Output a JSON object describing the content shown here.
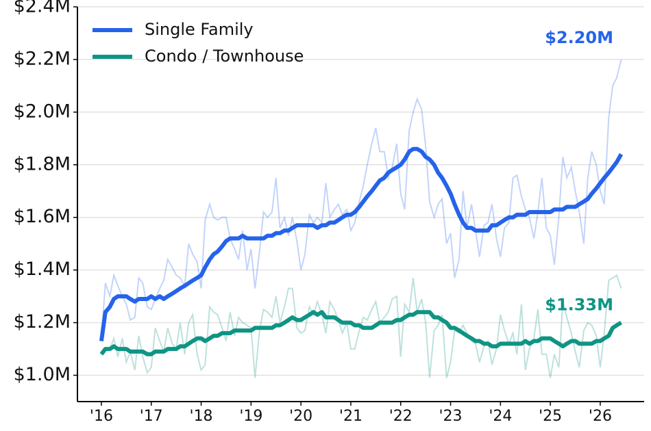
{
  "chart_data": {
    "type": "line",
    "x": [
      2016,
      2016.08,
      2016.17,
      2016.25,
      2016.33,
      2016.42,
      2016.5,
      2016.58,
      2016.67,
      2016.75,
      2016.83,
      2016.92,
      2017,
      2017.08,
      2017.17,
      2017.25,
      2017.33,
      2017.42,
      2017.5,
      2017.58,
      2017.67,
      2017.75,
      2017.83,
      2017.92,
      2018,
      2018.08,
      2018.17,
      2018.25,
      2018.33,
      2018.42,
      2018.5,
      2018.58,
      2018.67,
      2018.75,
      2018.83,
      2018.92,
      2019,
      2019.08,
      2019.17,
      2019.25,
      2019.33,
      2019.42,
      2019.5,
      2019.58,
      2019.67,
      2019.75,
      2019.83,
      2019.92,
      2020,
      2020.08,
      2020.17,
      2020.25,
      2020.33,
      2020.42,
      2020.5,
      2020.58,
      2020.67,
      2020.75,
      2020.83,
      2020.92,
      2021,
      2021.08,
      2021.17,
      2021.25,
      2021.33,
      2021.42,
      2021.5,
      2021.58,
      2021.67,
      2021.75,
      2021.83,
      2021.92,
      2022,
      2022.08,
      2022.17,
      2022.25,
      2022.33,
      2022.42,
      2022.5,
      2022.58,
      2022.67,
      2022.75,
      2022.83,
      2022.92,
      2023,
      2023.08,
      2023.17,
      2023.25,
      2023.33,
      2023.42,
      2023.5,
      2023.58,
      2023.67,
      2023.75,
      2023.83,
      2023.92,
      2024,
      2024.08,
      2024.17,
      2024.25,
      2024.33,
      2024.42,
      2024.5,
      2024.58,
      2024.67,
      2024.75,
      2024.83,
      2024.92,
      2025,
      2025.08,
      2025.17,
      2025.25,
      2025.33,
      2025.42,
      2025.5,
      2025.58,
      2025.67,
      2025.75,
      2025.83,
      2025.92,
      2026,
      2026.08,
      2026.17,
      2026.25,
      2026.33,
      2026.42
    ],
    "series": [
      {
        "name": "Single Family",
        "color": "#2563eb",
        "end_label": "$2.20M",
        "values": [
          1.13,
          1.24,
          1.26,
          1.29,
          1.3,
          1.3,
          1.3,
          1.29,
          1.28,
          1.29,
          1.29,
          1.29,
          1.3,
          1.29,
          1.3,
          1.29,
          1.3,
          1.31,
          1.32,
          1.33,
          1.34,
          1.35,
          1.36,
          1.37,
          1.38,
          1.41,
          1.44,
          1.46,
          1.47,
          1.49,
          1.51,
          1.52,
          1.52,
          1.52,
          1.53,
          1.52,
          1.52,
          1.52,
          1.52,
          1.52,
          1.53,
          1.53,
          1.54,
          1.54,
          1.55,
          1.55,
          1.56,
          1.57,
          1.57,
          1.57,
          1.57,
          1.57,
          1.56,
          1.57,
          1.57,
          1.58,
          1.58,
          1.59,
          1.6,
          1.61,
          1.61,
          1.62,
          1.64,
          1.66,
          1.68,
          1.7,
          1.72,
          1.74,
          1.75,
          1.77,
          1.78,
          1.79,
          1.8,
          1.82,
          1.85,
          1.86,
          1.86,
          1.85,
          1.83,
          1.82,
          1.8,
          1.77,
          1.75,
          1.72,
          1.69,
          1.65,
          1.61,
          1.58,
          1.56,
          1.56,
          1.55,
          1.55,
          1.55,
          1.55,
          1.57,
          1.57,
          1.58,
          1.59,
          1.6,
          1.6,
          1.61,
          1.61,
          1.61,
          1.62,
          1.62,
          1.62,
          1.62,
          1.62,
          1.62,
          1.63,
          1.63,
          1.63,
          1.64,
          1.64,
          1.64,
          1.65,
          1.66,
          1.67,
          1.69,
          1.71,
          1.73,
          1.75,
          1.77,
          1.79,
          1.81,
          1.84
        ],
        "raw": [
          1.14,
          1.35,
          1.3,
          1.38,
          1.34,
          1.3,
          1.27,
          1.21,
          1.22,
          1.37,
          1.35,
          1.26,
          1.25,
          1.29,
          1.33,
          1.36,
          1.44,
          1.41,
          1.38,
          1.37,
          1.34,
          1.5,
          1.46,
          1.43,
          1.33,
          1.59,
          1.65,
          1.6,
          1.59,
          1.6,
          1.6,
          1.52,
          1.48,
          1.44,
          1.55,
          1.4,
          1.48,
          1.33,
          1.47,
          1.62,
          1.6,
          1.62,
          1.75,
          1.56,
          1.6,
          1.53,
          1.6,
          1.51,
          1.4,
          1.46,
          1.61,
          1.58,
          1.6,
          1.58,
          1.73,
          1.6,
          1.63,
          1.65,
          1.61,
          1.63,
          1.55,
          1.58,
          1.66,
          1.72,
          1.8,
          1.88,
          1.94,
          1.85,
          1.85,
          1.75,
          1.79,
          1.88,
          1.69,
          1.63,
          1.93,
          2.0,
          2.05,
          2.01,
          1.87,
          1.66,
          1.6,
          1.65,
          1.67,
          1.5,
          1.54,
          1.37,
          1.44,
          1.7,
          1.56,
          1.65,
          1.55,
          1.45,
          1.57,
          1.58,
          1.65,
          1.52,
          1.45,
          1.56,
          1.58,
          1.75,
          1.76,
          1.68,
          1.63,
          1.6,
          1.52,
          1.62,
          1.75,
          1.56,
          1.53,
          1.42,
          1.6,
          1.83,
          1.75,
          1.79,
          1.7,
          1.62,
          1.5,
          1.75,
          1.85,
          1.8,
          1.7,
          1.65,
          1.98,
          2.1,
          2.13,
          2.2
        ]
      },
      {
        "name": "Condo / Townhouse",
        "color": "#0f9484",
        "end_label": "$1.33M",
        "values": [
          1.08,
          1.1,
          1.1,
          1.11,
          1.1,
          1.1,
          1.1,
          1.09,
          1.09,
          1.09,
          1.09,
          1.08,
          1.08,
          1.09,
          1.09,
          1.09,
          1.1,
          1.1,
          1.1,
          1.11,
          1.11,
          1.12,
          1.13,
          1.14,
          1.14,
          1.13,
          1.14,
          1.15,
          1.15,
          1.16,
          1.16,
          1.16,
          1.17,
          1.17,
          1.17,
          1.17,
          1.17,
          1.18,
          1.18,
          1.18,
          1.18,
          1.18,
          1.19,
          1.19,
          1.2,
          1.21,
          1.22,
          1.21,
          1.21,
          1.22,
          1.23,
          1.24,
          1.23,
          1.24,
          1.22,
          1.22,
          1.22,
          1.21,
          1.2,
          1.2,
          1.2,
          1.19,
          1.19,
          1.18,
          1.18,
          1.18,
          1.19,
          1.2,
          1.2,
          1.2,
          1.2,
          1.21,
          1.21,
          1.22,
          1.23,
          1.23,
          1.24,
          1.24,
          1.24,
          1.24,
          1.22,
          1.22,
          1.21,
          1.2,
          1.18,
          1.18,
          1.17,
          1.16,
          1.15,
          1.14,
          1.13,
          1.13,
          1.12,
          1.12,
          1.11,
          1.11,
          1.12,
          1.12,
          1.12,
          1.12,
          1.12,
          1.12,
          1.13,
          1.12,
          1.13,
          1.13,
          1.14,
          1.14,
          1.14,
          1.13,
          1.12,
          1.11,
          1.12,
          1.13,
          1.13,
          1.12,
          1.12,
          1.12,
          1.12,
          1.13,
          1.13,
          1.14,
          1.15,
          1.18,
          1.19,
          1.2
        ],
        "raw": [
          1.08,
          1.1,
          1.1,
          1.14,
          1.07,
          1.14,
          1.05,
          1.09,
          1.02,
          1.15,
          1.07,
          1.01,
          1.03,
          1.18,
          1.13,
          1.09,
          1.18,
          1.12,
          1.1,
          1.2,
          1.08,
          1.2,
          1.23,
          1.08,
          1.02,
          1.04,
          1.26,
          1.24,
          1.23,
          1.18,
          1.13,
          1.24,
          1.15,
          1.22,
          1.2,
          1.19,
          1.18,
          0.99,
          1.17,
          1.25,
          1.24,
          1.22,
          1.3,
          1.2,
          1.26,
          1.33,
          1.33,
          1.18,
          1.16,
          1.17,
          1.26,
          1.23,
          1.28,
          1.23,
          1.16,
          1.28,
          1.25,
          1.21,
          1.16,
          1.2,
          1.1,
          1.1,
          1.17,
          1.22,
          1.21,
          1.25,
          1.28,
          1.2,
          1.22,
          1.24,
          1.29,
          1.3,
          1.07,
          1.27,
          1.24,
          1.37,
          1.24,
          1.29,
          1.2,
          0.99,
          1.17,
          1.19,
          1.23,
          0.99,
          1.05,
          1.17,
          1.16,
          1.19,
          1.16,
          1.13,
          1.12,
          1.05,
          1.11,
          1.13,
          1.04,
          1.1,
          1.23,
          1.17,
          1.12,
          1.16,
          1.08,
          1.27,
          1.02,
          1.1,
          1.14,
          1.25,
          1.08,
          1.08,
          0.99,
          1.08,
          1.03,
          1.28,
          1.22,
          1.16,
          1.09,
          1.03,
          1.17,
          1.2,
          1.19,
          1.15,
          1.03,
          1.16,
          1.36,
          1.37,
          1.38,
          1.33
        ]
      }
    ],
    "xlim": [
      2015.52,
      2026.88
    ],
    "xticks": [
      {
        "value": 2016,
        "label": "'16"
      },
      {
        "value": 2017,
        "label": "'17"
      },
      {
        "value": 2018,
        "label": "'18"
      },
      {
        "value": 2019,
        "label": "'19"
      },
      {
        "value": 2020,
        "label": "'20"
      },
      {
        "value": 2021,
        "label": "'21"
      },
      {
        "value": 2022,
        "label": "'22"
      },
      {
        "value": 2023,
        "label": "'23"
      },
      {
        "value": 2024,
        "label": "'24"
      },
      {
        "value": 2025,
        "label": "'25"
      },
      {
        "value": 2026,
        "label": "'26"
      }
    ],
    "ylim": [
      0.9,
      2.4
    ],
    "yticks": [
      {
        "value": 1.0,
        "label": "$1.0M"
      },
      {
        "value": 1.2,
        "label": "$1.2M"
      },
      {
        "value": 1.4,
        "label": "$1.4M"
      },
      {
        "value": 1.6,
        "label": "$1.6M"
      },
      {
        "value": 1.8,
        "label": "$1.8M"
      },
      {
        "value": 2.0,
        "label": "$2.0M"
      },
      {
        "value": 2.2,
        "label": "$2.2M"
      },
      {
        "value": 2.4,
        "label": "$2.4M"
      }
    ],
    "grid": true,
    "legend": "top-left"
  }
}
